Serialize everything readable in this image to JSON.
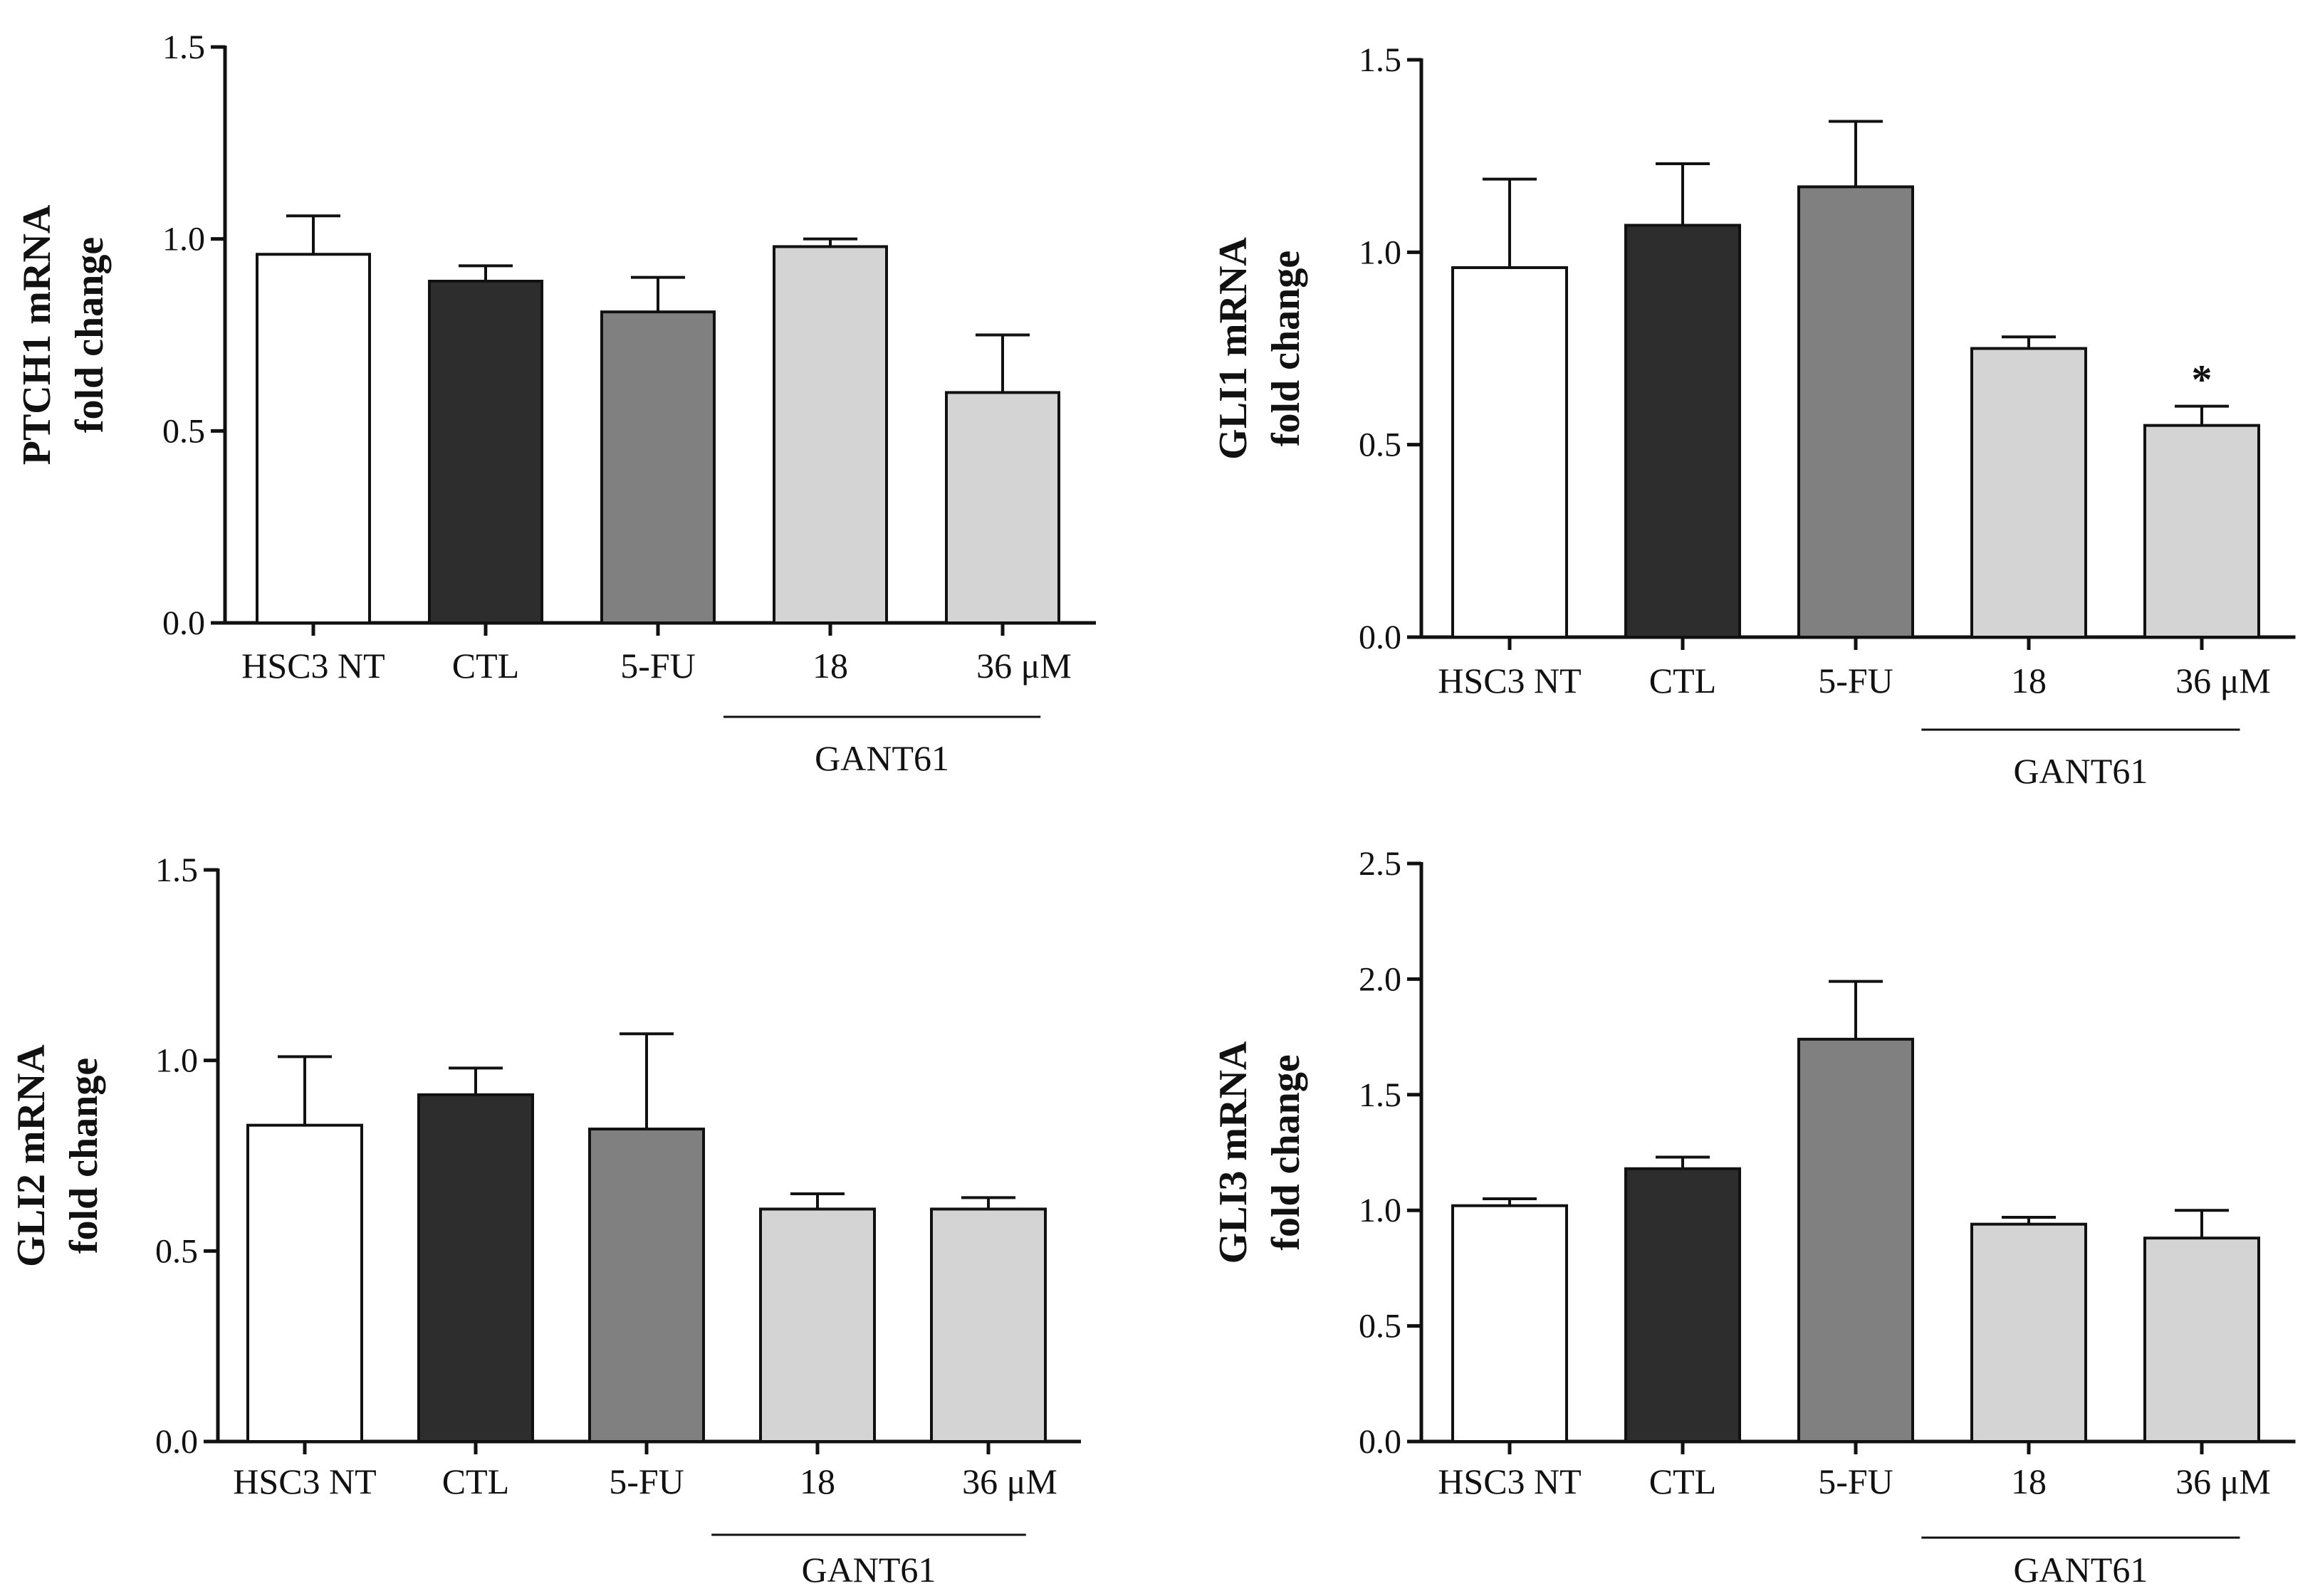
{
  "figure": {
    "panel_count": 4
  },
  "colors": {
    "HSC3 NT": "#ffffff",
    "CTL": "#2d2d2d",
    "5-FU": "#808080",
    "GANT61": "#d4d4d4",
    "stroke": "#111111"
  },
  "chart_data": [
    {
      "type": "bar",
      "title": "",
      "ylabel_line1": "PTCH1 mRNA",
      "ylabel_line2": "fold change",
      "xlabel": "",
      "categories": [
        "HSC3 NT",
        "CTL",
        "5-FU",
        "18",
        "36 μM"
      ],
      "values": [
        0.96,
        0.89,
        0.81,
        0.98,
        0.6
      ],
      "errors": [
        0.1,
        0.04,
        0.09,
        0.02,
        0.15
      ],
      "significance": [
        "",
        "",
        "",
        "",
        ""
      ],
      "group_label": "GANT61",
      "ylim": [
        0,
        1.5
      ],
      "yticks": [
        "0.0",
        "0.5",
        "1.0",
        "1.5"
      ]
    },
    {
      "type": "bar",
      "title": "",
      "ylabel_line1": "GLI1 mRNA",
      "ylabel_line2": "fold change",
      "xlabel": "",
      "categories": [
        "HSC3 NT",
        "CTL",
        "5-FU",
        "18",
        "36 μM"
      ],
      "values": [
        0.96,
        1.07,
        1.17,
        0.75,
        0.55
      ],
      "errors": [
        0.23,
        0.16,
        0.17,
        0.03,
        0.05
      ],
      "significance": [
        "",
        "",
        "",
        "",
        "*"
      ],
      "group_label": "GANT61",
      "ylim": [
        0,
        1.5
      ],
      "yticks": [
        "0.0",
        "0.5",
        "1.0",
        "1.5"
      ]
    },
    {
      "type": "bar",
      "title": "",
      "ylabel_line1": "GLI2 mRNA",
      "ylabel_line2": "fold change",
      "xlabel": "",
      "categories": [
        "HSC3 NT",
        "CTL",
        "5-FU",
        "18",
        "36 μM"
      ],
      "values": [
        0.83,
        0.91,
        0.82,
        0.61,
        0.61
      ],
      "errors": [
        0.18,
        0.07,
        0.25,
        0.04,
        0.03
      ],
      "significance": [
        "",
        "",
        "",
        "",
        ""
      ],
      "group_label": "GANT61",
      "ylim": [
        0,
        1.5
      ],
      "yticks": [
        "0.0",
        "0.5",
        "1.0",
        "1.5"
      ]
    },
    {
      "type": "bar",
      "title": "",
      "ylabel_line1": "GLI3 mRNA",
      "ylabel_line2": "fold change",
      "xlabel": "",
      "categories": [
        "HSC3 NT",
        "CTL",
        "5-FU",
        "18",
        "36 μM"
      ],
      "values": [
        1.02,
        1.18,
        1.74,
        0.94,
        0.88
      ],
      "errors": [
        0.03,
        0.05,
        0.25,
        0.03,
        0.12
      ],
      "significance": [
        "",
        "",
        "",
        "",
        ""
      ],
      "group_label": "GANT61",
      "ylim": [
        0,
        2.5
      ],
      "yticks": [
        "0.0",
        "0.5",
        "1.0",
        "1.5",
        "2.0",
        "2.5"
      ]
    }
  ]
}
